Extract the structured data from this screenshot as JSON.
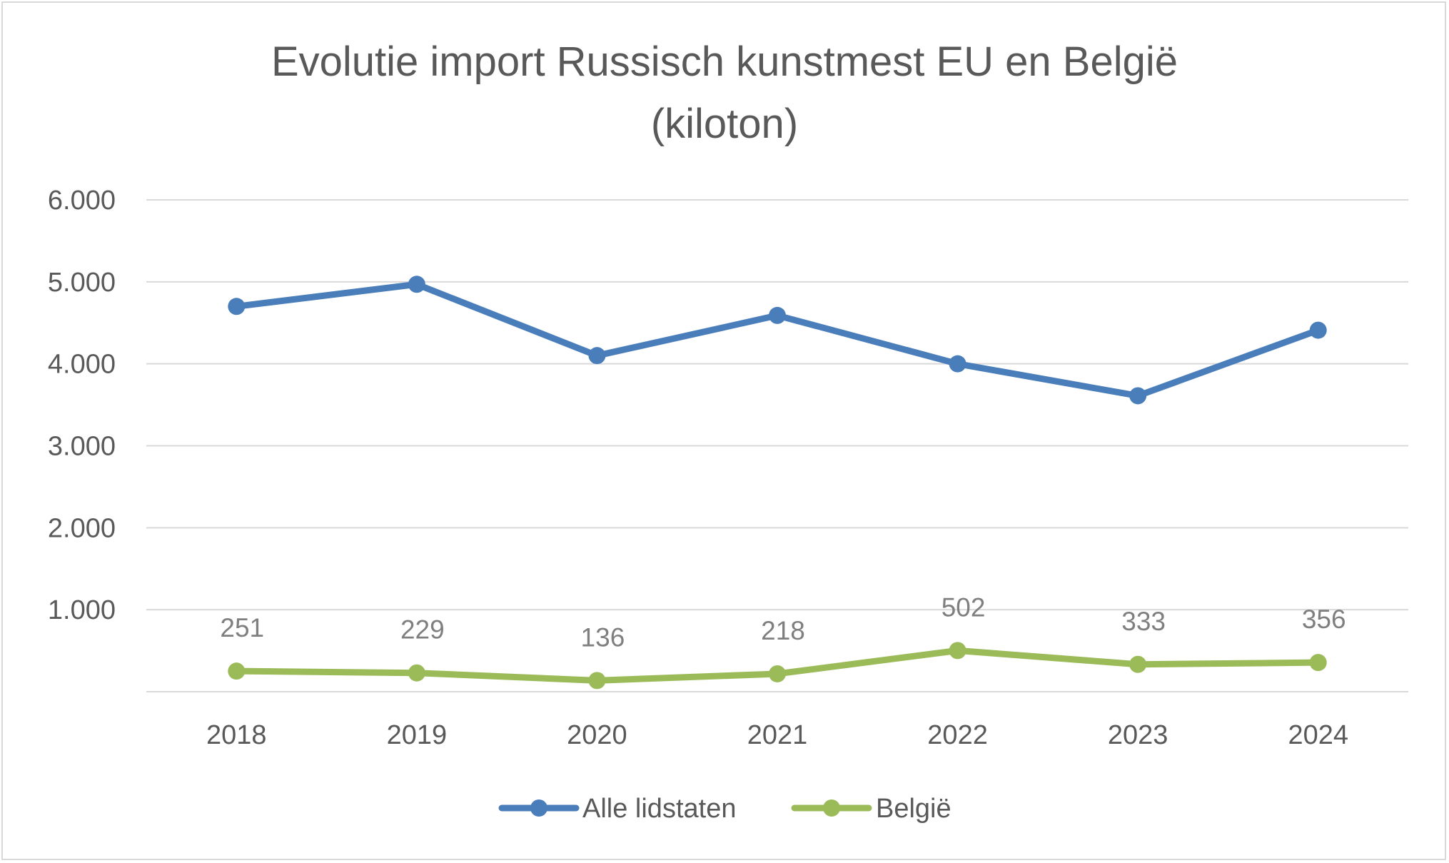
{
  "chart_data": {
    "type": "line",
    "title_lines": [
      "Evolutie import Russisch kunstmest EU en België",
      "(kiloton)"
    ],
    "categories": [
      "2018",
      "2019",
      "2020",
      "2021",
      "2022",
      "2023",
      "2024"
    ],
    "ylim": [
      0,
      6000
    ],
    "yticks": [
      {
        "value": 1000,
        "label": "1.000"
      },
      {
        "value": 2000,
        "label": "2.000"
      },
      {
        "value": 3000,
        "label": "3.000"
      },
      {
        "value": 4000,
        "label": "4.000"
      },
      {
        "value": 5000,
        "label": "5.000"
      },
      {
        "value": 6000,
        "label": "6.000"
      }
    ],
    "grid": true,
    "legend_position": "bottom",
    "series": [
      {
        "name": "Alle lidstaten",
        "color": "#4a7ebb",
        "values": [
          4700,
          4970,
          4100,
          4590,
          4000,
          3610,
          4410
        ],
        "show_labels": false
      },
      {
        "name": "België",
        "color": "#9bbb59",
        "values": [
          251,
          229,
          136,
          218,
          502,
          333,
          356
        ],
        "data_labels": [
          "251",
          "229",
          "136",
          "218",
          "502",
          "333",
          "356"
        ],
        "show_labels": true
      }
    ]
  }
}
